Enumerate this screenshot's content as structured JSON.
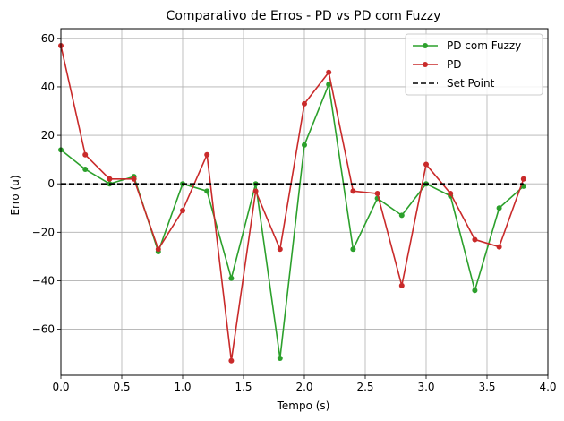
{
  "chart_data": {
    "type": "line",
    "title": "Comparativo de Erros - PD vs PD com Fuzzy",
    "xlabel": "Tempo (s)",
    "ylabel": "Erro (u)",
    "xlim": [
      0.0,
      4.0
    ],
    "ylim": [
      -79,
      64
    ],
    "xticks": [
      0.0,
      0.5,
      1.0,
      1.5,
      2.0,
      2.5,
      3.0,
      3.5,
      4.0
    ],
    "xtick_labels": [
      "0.0",
      "0.5",
      "1.0",
      "1.5",
      "2.0",
      "2.5",
      "3.0",
      "3.5",
      "4.0"
    ],
    "yticks": [
      -60,
      -40,
      -20,
      0,
      20,
      40,
      60
    ],
    "ytick_labels": [
      "−60",
      "−40",
      "−20",
      "0",
      "20",
      "40",
      "60"
    ],
    "grid": true,
    "legend_position": "top-right",
    "series": [
      {
        "name": "PD com Fuzzy",
        "color": "#2ca02c",
        "marker": "circle",
        "x": [
          0.0,
          0.2,
          0.4,
          0.6,
          0.8,
          1.0,
          1.2,
          1.4,
          1.6,
          1.8,
          2.0,
          2.2,
          2.4,
          2.6,
          2.8,
          3.0,
          3.2,
          3.4,
          3.6,
          3.8
        ],
        "y": [
          14,
          6,
          0,
          3,
          -28,
          0,
          -3,
          -39,
          0,
          -72,
          16,
          41,
          -27,
          -6,
          -13,
          0,
          -5,
          -44,
          -10,
          -1
        ]
      },
      {
        "name": "PD",
        "color": "#c92a2a",
        "marker": "circle",
        "x": [
          0.0,
          0.2,
          0.4,
          0.6,
          0.8,
          1.0,
          1.2,
          1.4,
          1.6,
          1.8,
          2.0,
          2.2,
          2.4,
          2.6,
          2.8,
          3.0,
          3.2,
          3.4,
          3.6,
          3.8
        ],
        "y": [
          57,
          12,
          2,
          2,
          -27,
          -11,
          12,
          -73,
          -3,
          -27,
          33,
          46,
          -3,
          -4,
          -42,
          8,
          -4,
          -23,
          -26,
          2
        ]
      },
      {
        "name": "Set Point",
        "color": "#000000",
        "style": "dashed",
        "x": [
          0.0,
          3.8
        ],
        "y": [
          0,
          0
        ]
      }
    ]
  }
}
